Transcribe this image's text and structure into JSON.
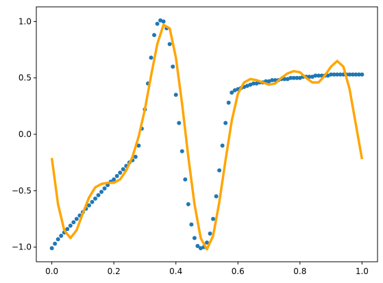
{
  "chart_data": {
    "type": "scatter",
    "title": "",
    "xlabel": "",
    "ylabel": "",
    "xlim": [
      -0.05,
      1.05
    ],
    "ylim": [
      -1.13,
      1.13
    ],
    "x_ticks": [
      {
        "value": 0.0,
        "label": "0.0"
      },
      {
        "value": 0.2,
        "label": "0.2"
      },
      {
        "value": 0.4,
        "label": "0.4"
      },
      {
        "value": 0.6,
        "label": "0.6"
      },
      {
        "value": 0.8,
        "label": "0.8"
      },
      {
        "value": 1.0,
        "label": "1.0"
      }
    ],
    "y_ticks": [
      {
        "value": -1.0,
        "label": "−1.0"
      },
      {
        "value": -0.5,
        "label": "−0.5"
      },
      {
        "value": 0.0,
        "label": "0.0"
      },
      {
        "value": 0.5,
        "label": "0.5"
      },
      {
        "value": 1.0,
        "label": "1.0"
      }
    ],
    "grid": false,
    "legend": "none",
    "series": [
      {
        "kind": "scatter",
        "color": "#1f77b4",
        "x": [
          0.0,
          0.01,
          0.02,
          0.03,
          0.04,
          0.05,
          0.06,
          0.07,
          0.08,
          0.09,
          0.1,
          0.11,
          0.12,
          0.13,
          0.14,
          0.15,
          0.16,
          0.17,
          0.18,
          0.19,
          0.2,
          0.21,
          0.22,
          0.23,
          0.24,
          0.25,
          0.26,
          0.27,
          0.28,
          0.29,
          0.3,
          0.31,
          0.32,
          0.33,
          0.34,
          0.35,
          0.36,
          0.37,
          0.38,
          0.39,
          0.4,
          0.41,
          0.42,
          0.43,
          0.44,
          0.45,
          0.46,
          0.47,
          0.48,
          0.49,
          0.5,
          0.51,
          0.52,
          0.53,
          0.54,
          0.55,
          0.56,
          0.57,
          0.58,
          0.59,
          0.6,
          0.61,
          0.62,
          0.63,
          0.64,
          0.65,
          0.66,
          0.67,
          0.68,
          0.69,
          0.7,
          0.71,
          0.72,
          0.73,
          0.74,
          0.75,
          0.76,
          0.77,
          0.78,
          0.79,
          0.8,
          0.81,
          0.82,
          0.83,
          0.84,
          0.85,
          0.86,
          0.87,
          0.88,
          0.89,
          0.9,
          0.91,
          0.92,
          0.93,
          0.94,
          0.95,
          0.96,
          0.97,
          0.98,
          0.99,
          1.0
        ],
        "y": [
          -1.01,
          -0.97,
          -0.93,
          -0.9,
          -0.87,
          -0.84,
          -0.81,
          -0.78,
          -0.75,
          -0.72,
          -0.69,
          -0.66,
          -0.63,
          -0.6,
          -0.57,
          -0.54,
          -0.51,
          -0.48,
          -0.45,
          -0.42,
          -0.4,
          -0.37,
          -0.34,
          -0.31,
          -0.28,
          -0.25,
          -0.23,
          -0.2,
          -0.1,
          0.05,
          0.22,
          0.45,
          0.68,
          0.88,
          0.98,
          1.01,
          1.0,
          0.94,
          0.8,
          0.6,
          0.35,
          0.1,
          -0.15,
          -0.4,
          -0.62,
          -0.8,
          -0.92,
          -0.99,
          -1.01,
          -1.0,
          -0.96,
          -0.88,
          -0.75,
          -0.55,
          -0.32,
          -0.1,
          0.1,
          0.28,
          0.37,
          0.39,
          0.4,
          0.41,
          0.42,
          0.43,
          0.44,
          0.45,
          0.45,
          0.46,
          0.46,
          0.47,
          0.47,
          0.48,
          0.48,
          0.48,
          0.49,
          0.49,
          0.49,
          0.5,
          0.5,
          0.5,
          0.5,
          0.51,
          0.51,
          0.51,
          0.51,
          0.52,
          0.52,
          0.52,
          0.52,
          0.52,
          0.53,
          0.53,
          0.53,
          0.53,
          0.53,
          0.53,
          0.53,
          0.53,
          0.53,
          0.53,
          0.53
        ]
      },
      {
        "kind": "line",
        "color": "#ffa500",
        "x": [
          0.0,
          0.02,
          0.04,
          0.06,
          0.08,
          0.1,
          0.12,
          0.14,
          0.16,
          0.18,
          0.2,
          0.22,
          0.24,
          0.26,
          0.28,
          0.3,
          0.32,
          0.34,
          0.36,
          0.38,
          0.4,
          0.42,
          0.44,
          0.46,
          0.48,
          0.5,
          0.52,
          0.54,
          0.56,
          0.58,
          0.6,
          0.62,
          0.64,
          0.66,
          0.68,
          0.7,
          0.72,
          0.74,
          0.76,
          0.78,
          0.8,
          0.82,
          0.84,
          0.86,
          0.88,
          0.9,
          0.92,
          0.94,
          0.96,
          0.98,
          1.0
        ],
        "y": [
          -0.21,
          -0.62,
          -0.85,
          -0.92,
          -0.85,
          -0.7,
          -0.56,
          -0.47,
          -0.44,
          -0.43,
          -0.43,
          -0.4,
          -0.32,
          -0.2,
          -0.02,
          0.22,
          0.52,
          0.8,
          0.97,
          0.94,
          0.68,
          0.27,
          -0.2,
          -0.62,
          -0.92,
          -1.02,
          -0.9,
          -0.6,
          -0.23,
          0.12,
          0.36,
          0.46,
          0.49,
          0.48,
          0.46,
          0.44,
          0.45,
          0.5,
          0.54,
          0.56,
          0.55,
          0.5,
          0.46,
          0.46,
          0.52,
          0.6,
          0.65,
          0.6,
          0.4,
          0.09,
          -0.22
        ]
      }
    ]
  }
}
